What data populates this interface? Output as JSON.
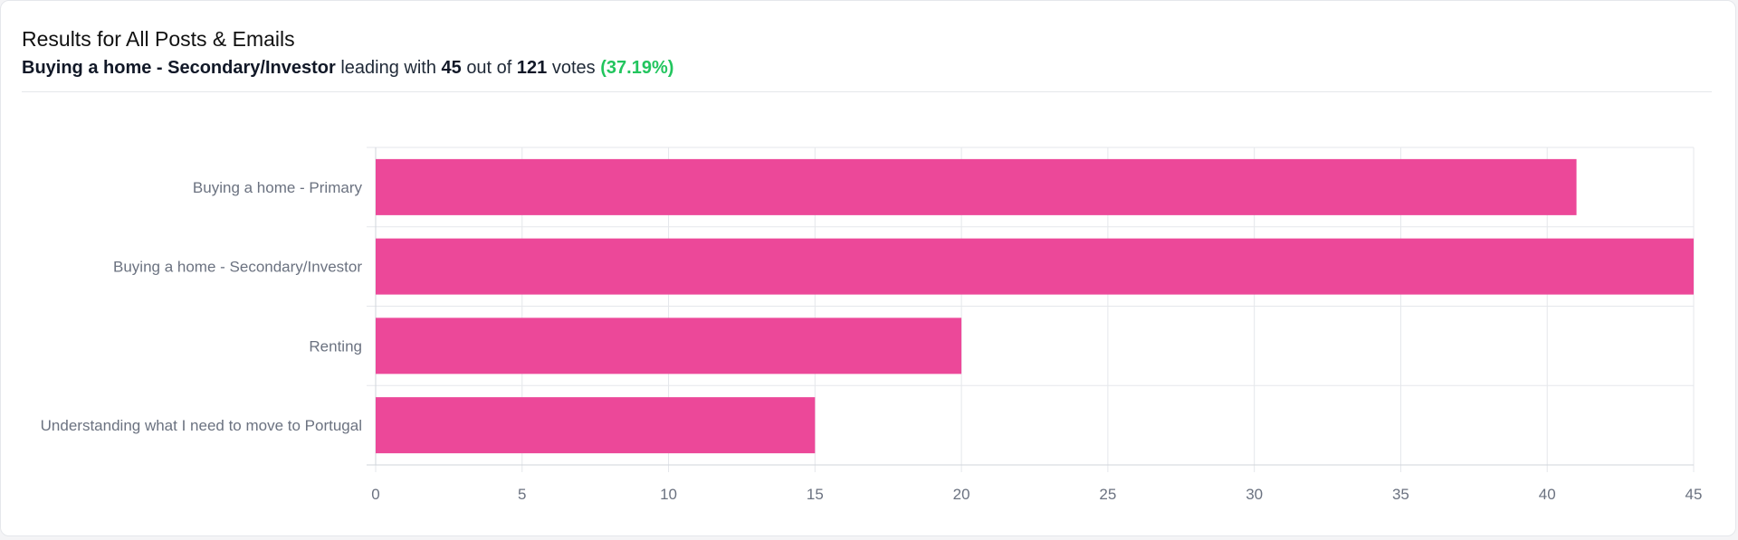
{
  "header": {
    "title": "Results for All Posts & Emails",
    "leader_label": "Buying a home - Secondary/Investor",
    "leading_with_text": "leading with",
    "leader_votes": "45",
    "out_of_text": "out of",
    "total_votes": "121",
    "votes_text": "votes",
    "leader_percent": "(37.19%)"
  },
  "colors": {
    "bar": "#ec4899",
    "accent_green": "#22c55e",
    "grid": "#e5e7eb"
  },
  "chart_data": {
    "type": "bar",
    "orientation": "horizontal",
    "categories": [
      "Buying a home - Primary",
      "Buying a home - Secondary/Investor",
      "Renting",
      "Understanding what I need to move to Portugal"
    ],
    "values": [
      41,
      45,
      20,
      15
    ],
    "xlim": [
      0,
      45
    ],
    "xticks": [
      "0",
      "5",
      "10",
      "15",
      "20",
      "25",
      "30",
      "35",
      "40",
      "45"
    ],
    "grid": true,
    "legend": "none"
  }
}
